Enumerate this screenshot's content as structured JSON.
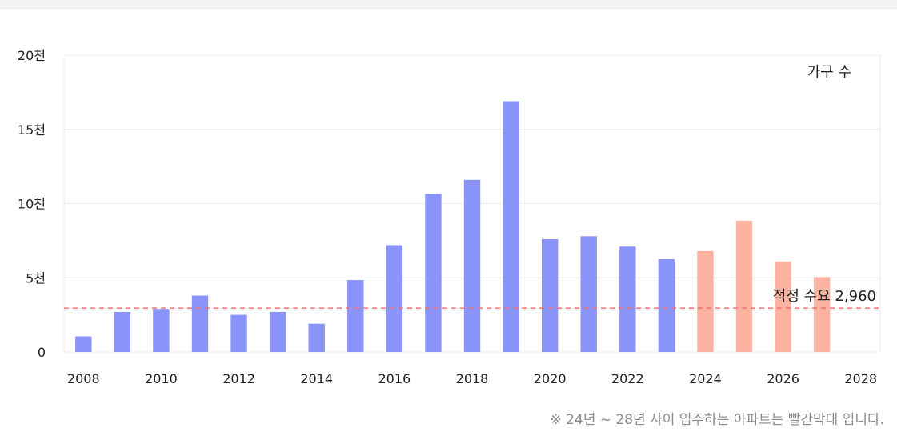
{
  "chart_data": {
    "type": "bar",
    "legend_label": "가구 수",
    "x": [
      2008,
      2009,
      2010,
      2011,
      2012,
      2013,
      2014,
      2015,
      2016,
      2017,
      2018,
      2019,
      2020,
      2021,
      2022,
      2023,
      2024,
      2025,
      2026,
      2027
    ],
    "values": [
      1050,
      2700,
      2900,
      3800,
      2500,
      2700,
      1900,
      4850,
      7200,
      10650,
      11600,
      16900,
      7600,
      7800,
      7100,
      6250,
      6800,
      8850,
      6100,
      5050
    ],
    "colors": {
      "past": "#8a94f8",
      "future": "#fcb3a0",
      "reference": "#f07070",
      "grid": "#ececec"
    },
    "future_from": 2024,
    "x_ticks": [
      "2008",
      "2010",
      "2012",
      "2014",
      "2016",
      "2018",
      "2020",
      "2022",
      "2024",
      "2026",
      "2028"
    ],
    "y_ticks": [
      "0",
      "5천",
      "10천",
      "15천",
      "20천"
    ],
    "xlim": [
      2007.5,
      2028.5
    ],
    "ylim": [
      0,
      20000
    ],
    "reference_line": {
      "value": 2960,
      "label": "적정 수요 2,960"
    },
    "grid": true,
    "legend_position": "top-right"
  },
  "footnote": "※ 24년 ~ 28년 사이 입주하는 아파트는 빨간막대 입니다."
}
